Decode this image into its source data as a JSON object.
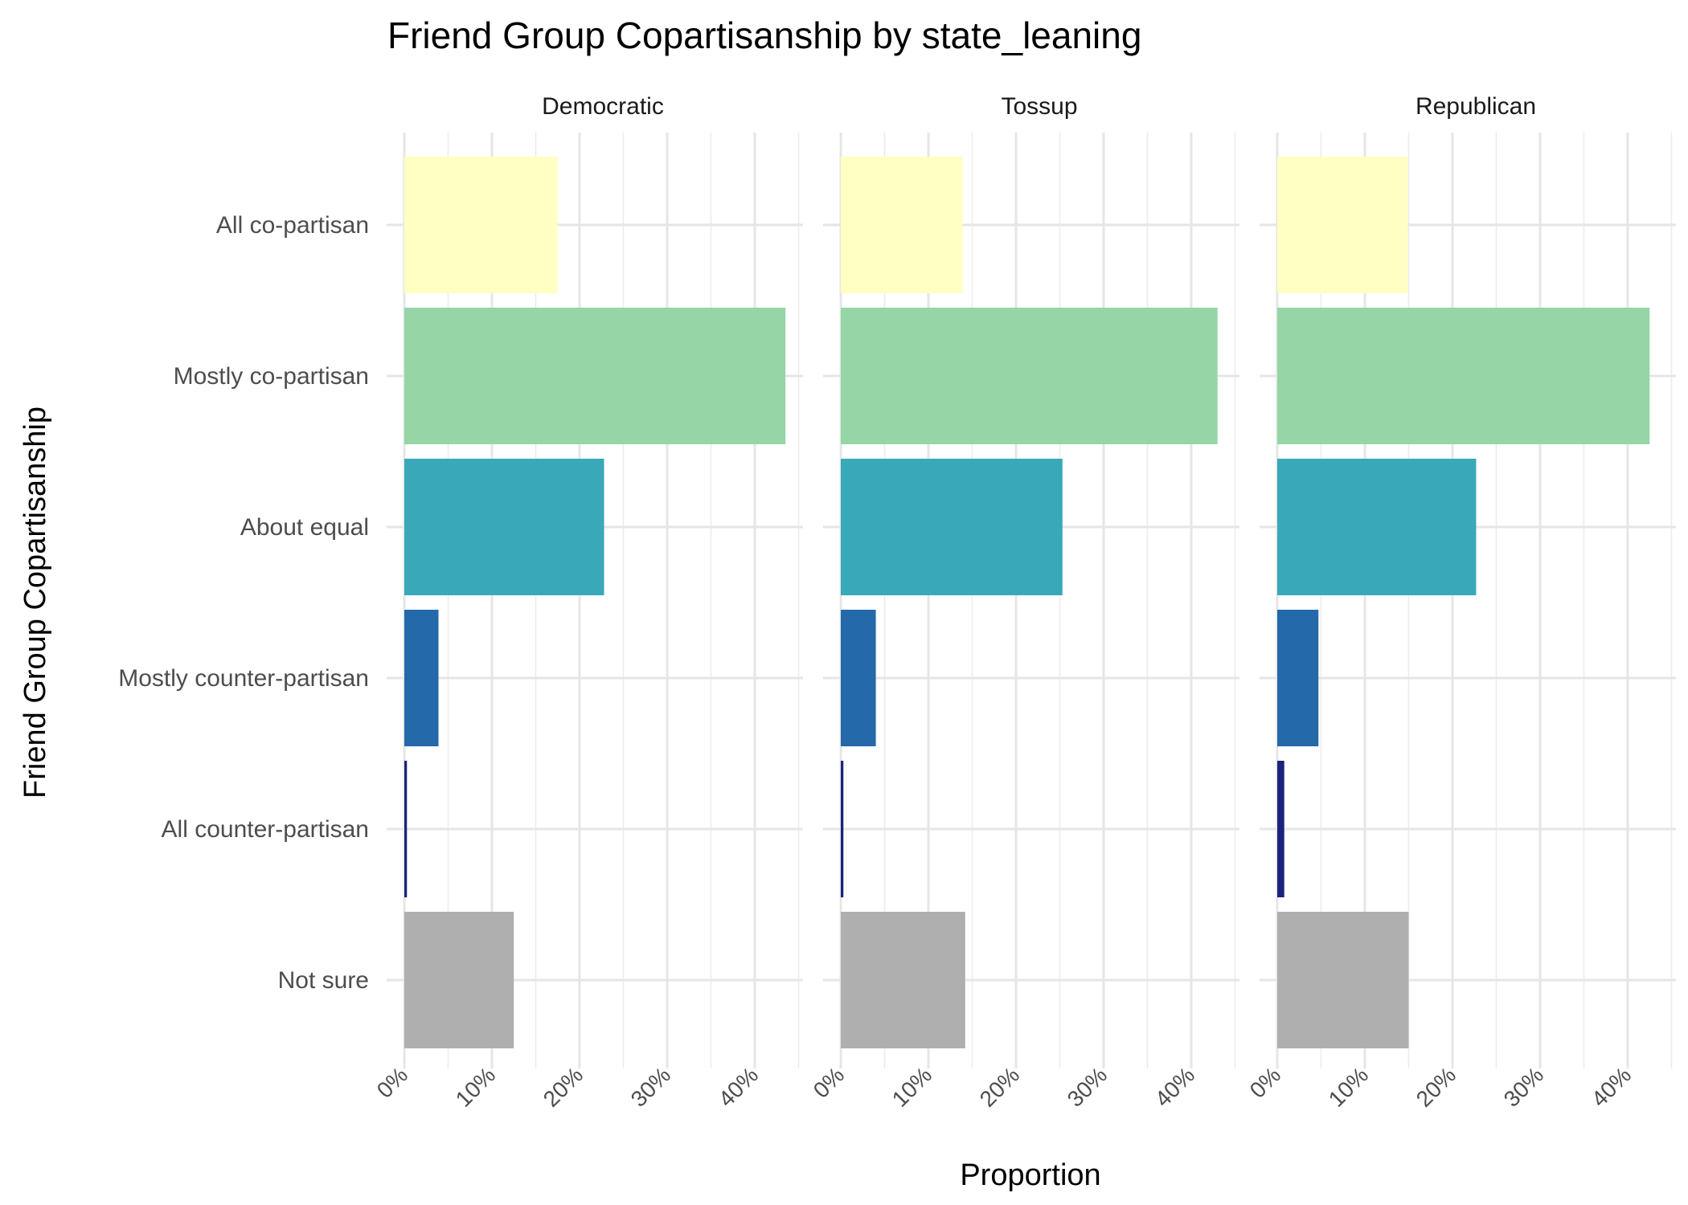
{
  "chart_data": {
    "type": "bar",
    "orientation": "horizontal",
    "title": "Friend Group Copartisanship by state_leaning",
    "xlabel": "Proportion",
    "ylabel": "Friend Group Copartisanship",
    "xlim": [
      0,
      0.45
    ],
    "x_ticks": [
      0,
      0.1,
      0.2,
      0.3,
      0.4
    ],
    "x_tick_labels": [
      "0%",
      "10%",
      "20%",
      "30%",
      "40%"
    ],
    "grid": true,
    "legend": "none",
    "categories": [
      "All co-partisan",
      "Mostly co-partisan",
      "About equal",
      "Mostly counter-partisan",
      "All counter-partisan",
      "Not sure"
    ],
    "category_colors": [
      "#ffffc4",
      "#95d5a6",
      "#39a8b9",
      "#2469aa",
      "#1c237c",
      "#afafaf"
    ],
    "panels": [
      {
        "name": "Democratic",
        "values": [
          0.175,
          0.435,
          0.228,
          0.039,
          0.003,
          0.125
        ]
      },
      {
        "name": "Tossup",
        "values": [
          0.139,
          0.43,
          0.253,
          0.04,
          0.003,
          0.142
        ]
      },
      {
        "name": "Republican",
        "values": [
          0.149,
          0.425,
          0.227,
          0.047,
          0.008,
          0.15
        ]
      }
    ]
  }
}
